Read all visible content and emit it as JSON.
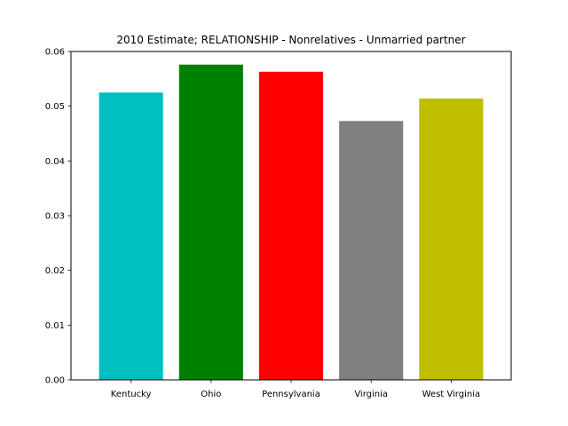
{
  "chart_data": {
    "type": "bar",
    "title": "2010 Estimate; RELATIONSHIP - Nonrelatives - Unmarried partner",
    "xlabel": "",
    "ylabel": "",
    "categories": [
      "Kentucky",
      "Ohio",
      "Pennsylvania",
      "Virginia",
      "West Virginia"
    ],
    "values": [
      0.0525,
      0.0576,
      0.0563,
      0.0473,
      0.0514
    ],
    "colors": [
      "#00bfbf",
      "#008000",
      "#ff0000",
      "#808080",
      "#bfbf00"
    ],
    "ylim": [
      0,
      0.06
    ],
    "yticks": [
      "0.00",
      "0.01",
      "0.02",
      "0.03",
      "0.04",
      "0.05",
      "0.06"
    ],
    "grid": false,
    "legend": "none"
  }
}
